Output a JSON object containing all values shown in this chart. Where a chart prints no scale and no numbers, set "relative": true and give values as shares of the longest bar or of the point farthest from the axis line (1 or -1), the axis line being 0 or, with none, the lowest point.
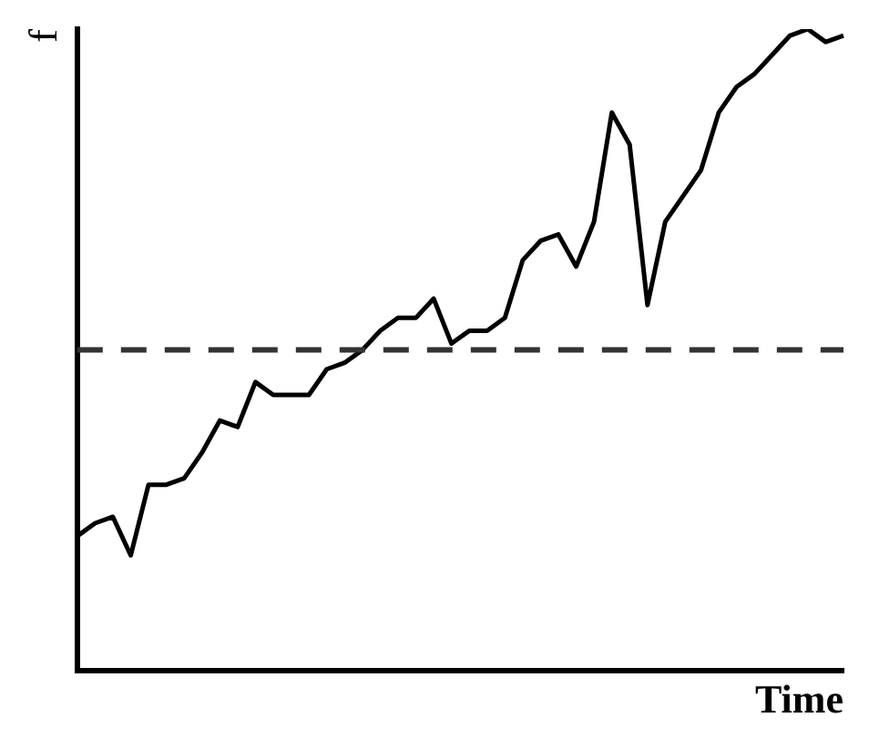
{
  "chart_data": {
    "type": "line",
    "relative": true,
    "xlabel": "Time",
    "ylabel": "f",
    "categories": [
      null,
      null,
      null,
      null,
      null,
      null,
      null,
      null,
      null,
      null,
      null,
      null,
      null,
      null,
      null,
      null,
      null,
      null,
      null,
      null,
      null,
      null,
      null,
      null,
      null,
      null,
      null,
      null,
      null,
      null,
      null,
      null,
      null,
      null,
      null,
      null,
      null,
      null,
      null,
      null,
      null,
      null,
      null,
      null
    ],
    "series": [
      {
        "color": "#000000",
        "values": [
          0.21,
          0.23,
          0.24,
          0.18,
          0.29,
          0.29,
          0.3,
          0.34,
          0.39,
          0.38,
          0.45,
          0.43,
          0.43,
          0.43,
          0.47,
          0.48,
          0.5,
          0.53,
          0.55,
          0.55,
          0.58,
          0.51,
          0.53,
          0.53,
          0.55,
          0.64,
          0.67,
          0.68,
          0.63,
          0.7,
          0.87,
          0.82,
          0.57,
          0.7,
          0.74,
          0.78,
          0.87,
          0.91,
          0.93,
          0.96,
          0.99,
          1.0,
          0.98,
          0.99
        ]
      }
    ],
    "ref_lines": [
      {
        "axis": "y",
        "value": 0.5,
        "color": "#333333",
        "line_style": "dashed"
      }
    ],
    "grid": false,
    "legend": false,
    "marker": "none",
    "line_style": "solid"
  }
}
